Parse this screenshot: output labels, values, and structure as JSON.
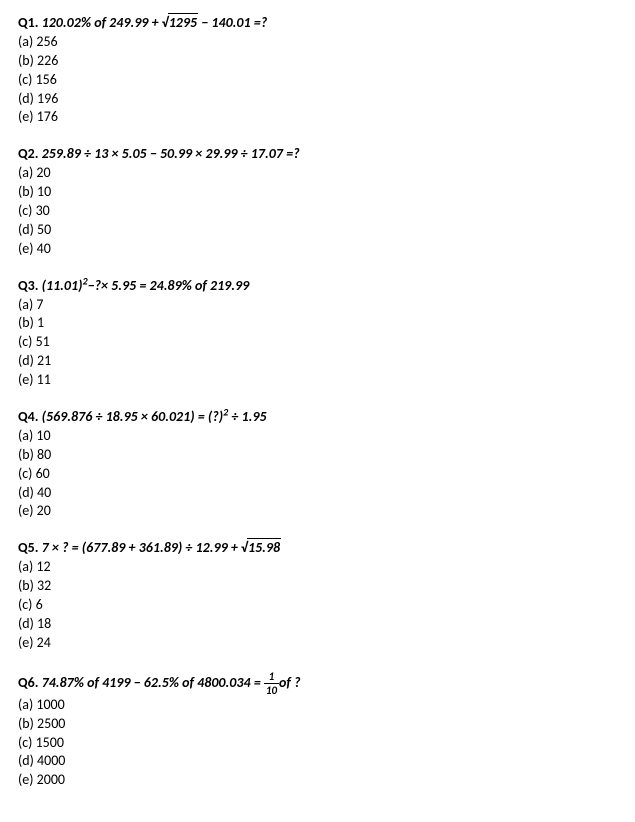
{
  "questions": [
    {
      "qnum": "Q1.",
      "expr_html": "120.02% <span class='of'>of</span> 249.99 + <span class='sqrt'><span class='surd'>√</span><span class='radicand'>1295</span></span> − 140.01 =?",
      "options": [
        "(a) 256",
        "(b) 226",
        "(c) 156",
        "(d) 196",
        "(e) 176"
      ]
    },
    {
      "qnum": "Q2.",
      "expr_html": "259.89 ÷ 13 × 5.05 − 50.99 × 29.99 ÷ 17.07 =?",
      "options": [
        "(a) 20",
        "(b) 10",
        "(c) 30",
        "(d) 50",
        "(e) 40"
      ]
    },
    {
      "qnum": "Q3.",
      "expr_html": "(11.01)<sup>2</sup>−?× 5.95 = 24.89% <span class='of'>of</span> 219.99",
      "options": [
        "(a) 7",
        "(b) 1",
        "(c) 51",
        "(d) 21",
        "(e) 11"
      ]
    },
    {
      "qnum": "Q4.",
      "expr_html": "(569.876 ÷ 18.95 × 60.021) = (?)<sup>2</sup> ÷ 1.95",
      "options": [
        "(a) 10",
        "(b) 80",
        "(c) 60",
        "(d) 40",
        "(e) 20"
      ]
    },
    {
      "qnum": "Q5.",
      "expr_html": "7 × ? = (677.89 + 361.89) ÷ 12.99 + <span class='sqrt'><span class='surd'>√</span><span class='radicand'>15.98</span></span>",
      "options": [
        "(a) 12",
        "(b) 32",
        "(c) 6",
        "(d) 18",
        "(e) 24"
      ]
    },
    {
      "qnum": "Q6.",
      "expr_html": "74.87% <span class='of'>of</span> 4199 − 62.5% <span class='of'>of</span> 4800.034 = <span class='frac'><span class='num'>1</span><span class='den'>10</span></span><span class='of'>of</span> ?",
      "options": [
        "(a) 1000",
        "(b) 2500",
        "(c) 1500",
        "(d) 4000",
        "(e) 2000"
      ]
    }
  ]
}
